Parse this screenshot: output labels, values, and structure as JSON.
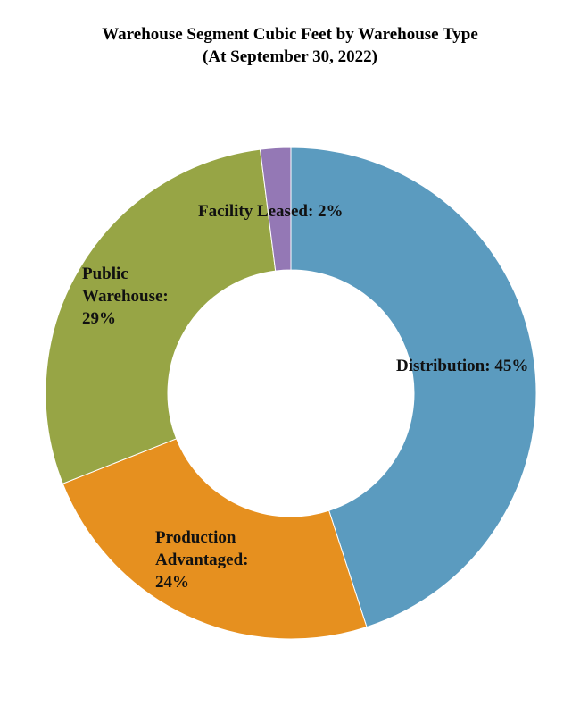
{
  "chart_data": {
    "type": "donut",
    "title": "Warehouse Segment Cubic Feet by Warehouse Type",
    "subtitle": "(At September 30, 2022)",
    "values": [
      45,
      24,
      29,
      2
    ],
    "value_labels": [
      "Distribution: 45%",
      "Production Advantaged: 24%",
      "Public Warehouse: 29%",
      "Facility Leased: 2%"
    ],
    "colors": [
      "#5b9bbf",
      "#e6901f",
      "#97a545",
      "#9478b5"
    ]
  }
}
